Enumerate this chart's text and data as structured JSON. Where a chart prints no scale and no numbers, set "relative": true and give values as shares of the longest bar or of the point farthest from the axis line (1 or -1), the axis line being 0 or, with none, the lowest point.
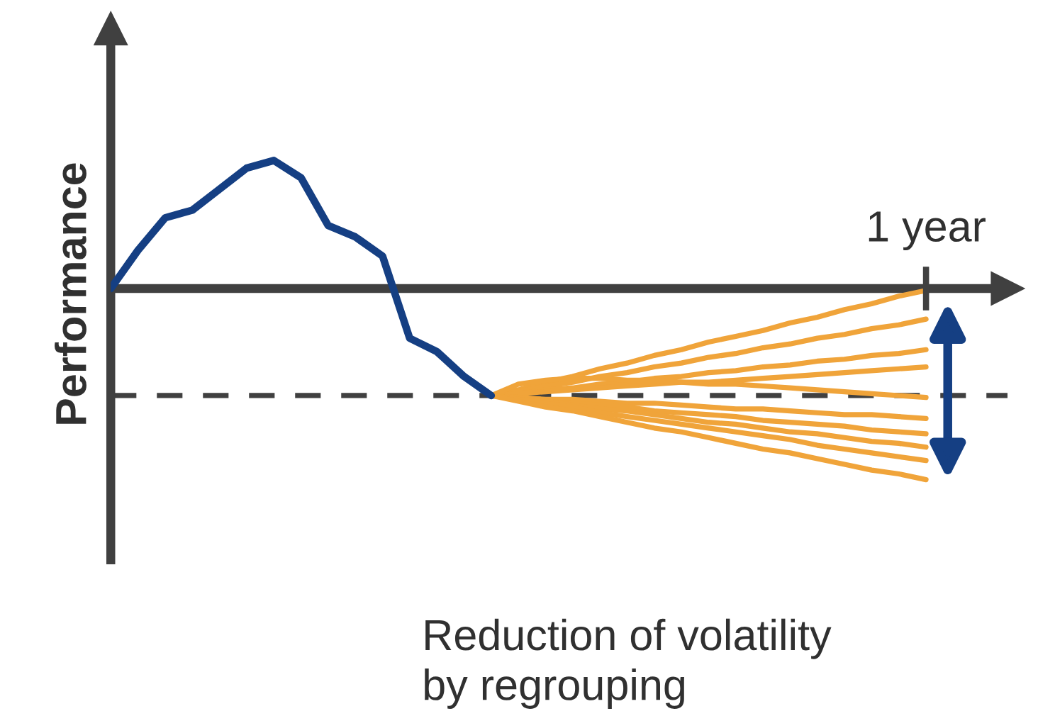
{
  "chart_data": {
    "type": "line",
    "relative": true,
    "ylabel": "Performance",
    "categories": [
      null,
      null,
      null,
      null,
      null,
      null,
      null,
      null,
      null,
      null,
      null,
      null,
      null,
      null,
      null,
      null,
      null,
      null,
      null,
      null,
      null,
      null,
      null,
      null,
      null,
      null,
      null,
      null,
      null,
      null,
      null
    ],
    "series": [
      {
        "color": "#153f83",
        "values": [
          0,
          0.2,
          0.37,
          0.41,
          0.52,
          0.63,
          0.67,
          0.58,
          0.33,
          0.27,
          0.17,
          -0.26,
          -0.33,
          -0.46,
          -0.56,
          null,
          null,
          null,
          null,
          null,
          null,
          null,
          null,
          null,
          null,
          null,
          null,
          null,
          null,
          null,
          null
        ]
      },
      {
        "color": "#f0a43a",
        "values": [
          null,
          null,
          null,
          null,
          null,
          null,
          null,
          null,
          null,
          null,
          null,
          null,
          null,
          null,
          -0.56,
          -0.53,
          -0.49,
          -0.46,
          -0.42,
          -0.39,
          -0.35,
          -0.32,
          -0.28,
          -0.25,
          -0.22,
          -0.18,
          -0.15,
          -0.11,
          -0.08,
          -0.04,
          -0.01
        ]
      },
      {
        "color": "#f0a43a",
        "values": [
          null,
          null,
          null,
          null,
          null,
          null,
          null,
          null,
          null,
          null,
          null,
          null,
          null,
          null,
          -0.56,
          -0.54,
          -0.51,
          -0.49,
          -0.46,
          -0.44,
          -0.41,
          -0.39,
          -0.36,
          -0.34,
          -0.31,
          -0.29,
          -0.26,
          -0.24,
          -0.21,
          -0.19,
          -0.16
        ]
      },
      {
        "color": "#f0a43a",
        "values": [
          null,
          null,
          null,
          null,
          null,
          null,
          null,
          null,
          null,
          null,
          null,
          null,
          null,
          null,
          -0.56,
          -0.55,
          -0.53,
          -0.52,
          -0.5,
          -0.49,
          -0.47,
          -0.46,
          -0.44,
          -0.43,
          -0.41,
          -0.4,
          -0.38,
          -0.37,
          -0.35,
          -0.34,
          -0.32
        ]
      },
      {
        "color": "#f0a43a",
        "values": [
          null,
          null,
          null,
          null,
          null,
          null,
          null,
          null,
          null,
          null,
          null,
          null,
          null,
          null,
          -0.56,
          -0.55,
          -0.54,
          -0.53,
          -0.52,
          -0.51,
          -0.5,
          -0.49,
          -0.49,
          -0.48,
          -0.47,
          -0.46,
          -0.45,
          -0.44,
          -0.43,
          -0.42,
          -0.41
        ]
      },
      {
        "color": "#f0a43a",
        "values": [
          null,
          null,
          null,
          null,
          null,
          null,
          null,
          null,
          null,
          null,
          null,
          null,
          null,
          null,
          -0.56,
          -0.5,
          -0.48,
          -0.47,
          -0.47,
          -0.48,
          -0.48,
          -0.49,
          -0.5,
          -0.5,
          -0.51,
          -0.52,
          -0.53,
          -0.54,
          -0.55,
          -0.56,
          -0.57
        ]
      },
      {
        "color": "#f0a43a",
        "values": [
          null,
          null,
          null,
          null,
          null,
          null,
          null,
          null,
          null,
          null,
          null,
          null,
          null,
          null,
          -0.56,
          -0.57,
          -0.58,
          -0.58,
          -0.59,
          -0.6,
          -0.6,
          -0.61,
          -0.62,
          -0.63,
          -0.63,
          -0.64,
          -0.65,
          -0.66,
          -0.66,
          -0.67,
          -0.68
        ]
      },
      {
        "color": "#f0a43a",
        "values": [
          null,
          null,
          null,
          null,
          null,
          null,
          null,
          null,
          null,
          null,
          null,
          null,
          null,
          null,
          -0.56,
          -0.57,
          -0.59,
          -0.6,
          -0.61,
          -0.62,
          -0.64,
          -0.65,
          -0.66,
          -0.67,
          -0.69,
          -0.7,
          -0.71,
          -0.72,
          -0.74,
          -0.75,
          -0.76
        ]
      },
      {
        "color": "#f0a43a",
        "values": [
          null,
          null,
          null,
          null,
          null,
          null,
          null,
          null,
          null,
          null,
          null,
          null,
          null,
          null,
          -0.56,
          -0.58,
          -0.59,
          -0.61,
          -0.63,
          -0.64,
          -0.66,
          -0.68,
          -0.7,
          -0.71,
          -0.73,
          -0.75,
          -0.76,
          -0.78,
          -0.8,
          -0.81,
          -0.83
        ]
      },
      {
        "color": "#f0a43a",
        "values": [
          null,
          null,
          null,
          null,
          null,
          null,
          null,
          null,
          null,
          null,
          null,
          null,
          null,
          null,
          -0.56,
          -0.58,
          -0.6,
          -0.62,
          -0.65,
          -0.67,
          -0.69,
          -0.71,
          -0.73,
          -0.75,
          -0.77,
          -0.79,
          -0.82,
          -0.84,
          -0.86,
          -0.88,
          -0.9
        ]
      },
      {
        "color": "#f0a43a",
        "values": [
          null,
          null,
          null,
          null,
          null,
          null,
          null,
          null,
          null,
          null,
          null,
          null,
          null,
          null,
          -0.56,
          -0.59,
          -0.62,
          -0.64,
          -0.67,
          -0.7,
          -0.73,
          -0.75,
          -0.78,
          -0.81,
          -0.84,
          -0.86,
          -0.89,
          -0.92,
          -0.95,
          -0.97,
          -1.0
        ]
      }
    ],
    "ref_lines": [
      {
        "axis": "y",
        "value": -0.56,
        "color": "#404040",
        "line_style": "dashed"
      }
    ],
    "annotations": [
      "1 year",
      "Reduction of volatility\nby regrouping"
    ]
  }
}
